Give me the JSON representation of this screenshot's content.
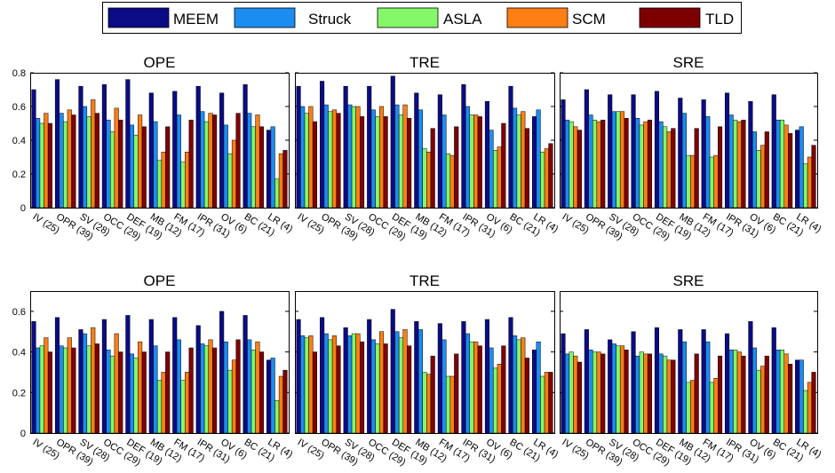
{
  "legend": [
    {
      "name": "MEEM",
      "color": "#0b0b86"
    },
    {
      "name": "Struck",
      "color": "#1c8cf0"
    },
    {
      "name": "ASLA",
      "color": "#84f869"
    },
    {
      "name": "SCM",
      "color": "#ff7f14"
    },
    {
      "name": "TLD",
      "color": "#7d0000"
    }
  ],
  "chart_data": [
    {
      "type": "bar",
      "title": "OPE",
      "ylim": [
        0,
        0.8
      ],
      "yticks": [
        "0",
        "0.2",
        "0.4",
        "0.6",
        "0.8"
      ],
      "categories": [
        "IV (25)",
        "OPR (39)",
        "SV (28)",
        "OCC (29)",
        "DEF (19)",
        "MB (12)",
        "FM (17)",
        "IPR (31)",
        "OV (6)",
        "BC (21)",
        "LR (4)"
      ],
      "series": [
        {
          "name": "MEEM",
          "values": [
            0.7,
            0.76,
            0.72,
            0.73,
            0.76,
            0.68,
            0.69,
            0.72,
            0.68,
            0.73,
            0.46
          ]
        },
        {
          "name": "Struck",
          "values": [
            0.53,
            0.56,
            0.6,
            0.52,
            0.49,
            0.51,
            0.55,
            0.57,
            0.49,
            0.56,
            0.48
          ]
        },
        {
          "name": "ASLA",
          "values": [
            0.5,
            0.51,
            0.54,
            0.45,
            0.43,
            0.28,
            0.27,
            0.51,
            0.32,
            0.48,
            0.17
          ]
        },
        {
          "name": "SCM",
          "values": [
            0.56,
            0.58,
            0.64,
            0.59,
            0.55,
            0.33,
            0.33,
            0.56,
            0.4,
            0.55,
            0.32
          ]
        },
        {
          "name": "TLD",
          "values": [
            0.5,
            0.55,
            0.56,
            0.52,
            0.48,
            0.48,
            0.52,
            0.55,
            0.56,
            0.48,
            0.34
          ]
        }
      ]
    },
    {
      "type": "bar",
      "title": "TRE",
      "ylim": [
        0,
        0.8
      ],
      "yticks": [
        "0",
        "0.2",
        "0.4",
        "0.6",
        "0.8"
      ],
      "categories": [
        "IV (25)",
        "OPR (39)",
        "SV (28)",
        "OCC (29)",
        "DEF (19)",
        "MB (12)",
        "FM (17)",
        "IPR (31)",
        "OV (6)",
        "BC (21)",
        "LR (4)"
      ],
      "series": [
        {
          "name": "MEEM",
          "values": [
            0.72,
            0.75,
            0.72,
            0.72,
            0.78,
            0.68,
            0.67,
            0.73,
            0.63,
            0.72,
            0.54
          ]
        },
        {
          "name": "Struck",
          "values": [
            0.6,
            0.61,
            0.61,
            0.58,
            0.61,
            0.58,
            0.55,
            0.6,
            0.46,
            0.59,
            0.58
          ]
        },
        {
          "name": "ASLA",
          "values": [
            0.56,
            0.57,
            0.6,
            0.54,
            0.55,
            0.35,
            0.32,
            0.55,
            0.34,
            0.55,
            0.33
          ]
        },
        {
          "name": "SCM",
          "values": [
            0.6,
            0.58,
            0.6,
            0.6,
            0.61,
            0.33,
            0.31,
            0.55,
            0.36,
            0.57,
            0.35
          ]
        },
        {
          "name": "TLD",
          "values": [
            0.51,
            0.56,
            0.54,
            0.54,
            0.53,
            0.47,
            0.48,
            0.54,
            0.5,
            0.47,
            0.38
          ]
        }
      ]
    },
    {
      "type": "bar",
      "title": "SRE",
      "ylim": [
        0,
        0.8
      ],
      "yticks": [
        "0",
        "0.2",
        "0.4",
        "0.6",
        "0.8"
      ],
      "categories": [
        "IV (25)",
        "OPR (39)",
        "SV (28)",
        "OCC (29)",
        "DEF (19)",
        "MB (12)",
        "FM (17)",
        "IPR (31)",
        "OV (6)",
        "BC (21)",
        "LR (4)"
      ],
      "series": [
        {
          "name": "MEEM",
          "values": [
            0.64,
            0.7,
            0.67,
            0.67,
            0.69,
            0.65,
            0.64,
            0.68,
            0.63,
            0.67,
            0.46
          ]
        },
        {
          "name": "Struck",
          "values": [
            0.52,
            0.55,
            0.57,
            0.53,
            0.51,
            0.56,
            0.54,
            0.55,
            0.45,
            0.52,
            0.48
          ]
        },
        {
          "name": "ASLA",
          "values": [
            0.51,
            0.52,
            0.57,
            0.49,
            0.48,
            0.31,
            0.3,
            0.52,
            0.34,
            0.52,
            0.26
          ]
        },
        {
          "name": "SCM",
          "values": [
            0.48,
            0.51,
            0.57,
            0.51,
            0.45,
            0.31,
            0.31,
            0.51,
            0.37,
            0.49,
            0.3
          ]
        },
        {
          "name": "TLD",
          "values": [
            0.46,
            0.52,
            0.53,
            0.52,
            0.47,
            0.47,
            0.48,
            0.52,
            0.45,
            0.44,
            0.37
          ]
        }
      ]
    },
    {
      "type": "bar",
      "title": "OPE",
      "ylim": [
        0,
        0.7
      ],
      "yticks": [
        "0",
        "0.2",
        "0.4",
        "0.6"
      ],
      "categories": [
        "IV (25)",
        "OPR (39)",
        "SV (28)",
        "OCC (29)",
        "DEF (19)",
        "MB (12)",
        "FM (17)",
        "IPR (31)",
        "OV (6)",
        "BC (21)",
        "LR (4)"
      ],
      "series": [
        {
          "name": "MEEM",
          "values": [
            0.55,
            0.57,
            0.51,
            0.56,
            0.58,
            0.56,
            0.57,
            0.53,
            0.6,
            0.58,
            0.36
          ]
        },
        {
          "name": "Struck",
          "values": [
            0.42,
            0.43,
            0.49,
            0.41,
            0.39,
            0.43,
            0.46,
            0.44,
            0.45,
            0.46,
            0.37
          ]
        },
        {
          "name": "ASLA",
          "values": [
            0.43,
            0.42,
            0.43,
            0.38,
            0.37,
            0.26,
            0.26,
            0.43,
            0.31,
            0.41,
            0.16
          ]
        },
        {
          "name": "SCM",
          "values": [
            0.47,
            0.47,
            0.52,
            0.49,
            0.45,
            0.3,
            0.3,
            0.46,
            0.36,
            0.45,
            0.28
          ]
        },
        {
          "name": "TLD",
          "values": [
            0.4,
            0.42,
            0.44,
            0.4,
            0.4,
            0.4,
            0.42,
            0.42,
            0.46,
            0.4,
            0.31
          ]
        }
      ]
    },
    {
      "type": "bar",
      "title": "TRE",
      "ylim": [
        0,
        0.7
      ],
      "yticks": [
        "0",
        "0.2",
        "0.4",
        "0.6"
      ],
      "categories": [
        "IV (25)",
        "OPR (39)",
        "SV (28)",
        "OCC (29)",
        "DEF (19)",
        "MB (12)",
        "FM (17)",
        "IPR (31)",
        "OV (6)",
        "BC (21)",
        "LR (4)"
      ],
      "series": [
        {
          "name": "MEEM",
          "values": [
            0.56,
            0.57,
            0.52,
            0.56,
            0.61,
            0.55,
            0.54,
            0.55,
            0.56,
            0.57,
            0.41
          ]
        },
        {
          "name": "Struck",
          "values": [
            0.48,
            0.49,
            0.48,
            0.46,
            0.5,
            0.51,
            0.46,
            0.49,
            0.42,
            0.48,
            0.45
          ]
        },
        {
          "name": "ASLA",
          "values": [
            0.47,
            0.46,
            0.49,
            0.44,
            0.47,
            0.3,
            0.28,
            0.45,
            0.32,
            0.46,
            0.28
          ]
        },
        {
          "name": "SCM",
          "values": [
            0.48,
            0.48,
            0.49,
            0.5,
            0.51,
            0.29,
            0.28,
            0.45,
            0.34,
            0.47,
            0.3
          ]
        },
        {
          "name": "TLD",
          "values": [
            0.4,
            0.43,
            0.45,
            0.44,
            0.43,
            0.38,
            0.39,
            0.43,
            0.43,
            0.37,
            0.3
          ]
        }
      ]
    },
    {
      "type": "bar",
      "title": "SRE",
      "ylim": [
        0,
        0.7
      ],
      "yticks": [
        "0",
        "0.2",
        "0.4",
        "0.6"
      ],
      "categories": [
        "IV (25)",
        "OPR (39)",
        "SV (28)",
        "OCC (29)",
        "DEF (19)",
        "MB (12)",
        "FM (17)",
        "IPR (31)",
        "OV (6)",
        "BC (21)",
        "LR (4)"
      ],
      "series": [
        {
          "name": "MEEM",
          "values": [
            0.49,
            0.51,
            0.46,
            0.5,
            0.52,
            0.51,
            0.51,
            0.49,
            0.55,
            0.52,
            0.36
          ]
        },
        {
          "name": "Struck",
          "values": [
            0.39,
            0.41,
            0.44,
            0.38,
            0.39,
            0.45,
            0.45,
            0.41,
            0.42,
            0.41,
            0.36
          ]
        },
        {
          "name": "ASLA",
          "values": [
            0.4,
            0.4,
            0.43,
            0.4,
            0.38,
            0.25,
            0.25,
            0.41,
            0.31,
            0.41,
            0.21
          ]
        },
        {
          "name": "SCM",
          "values": [
            0.38,
            0.4,
            0.43,
            0.39,
            0.36,
            0.26,
            0.27,
            0.4,
            0.33,
            0.39,
            0.25
          ]
        },
        {
          "name": "TLD",
          "values": [
            0.35,
            0.39,
            0.41,
            0.39,
            0.36,
            0.39,
            0.38,
            0.38,
            0.38,
            0.34,
            0.3
          ]
        }
      ]
    }
  ]
}
